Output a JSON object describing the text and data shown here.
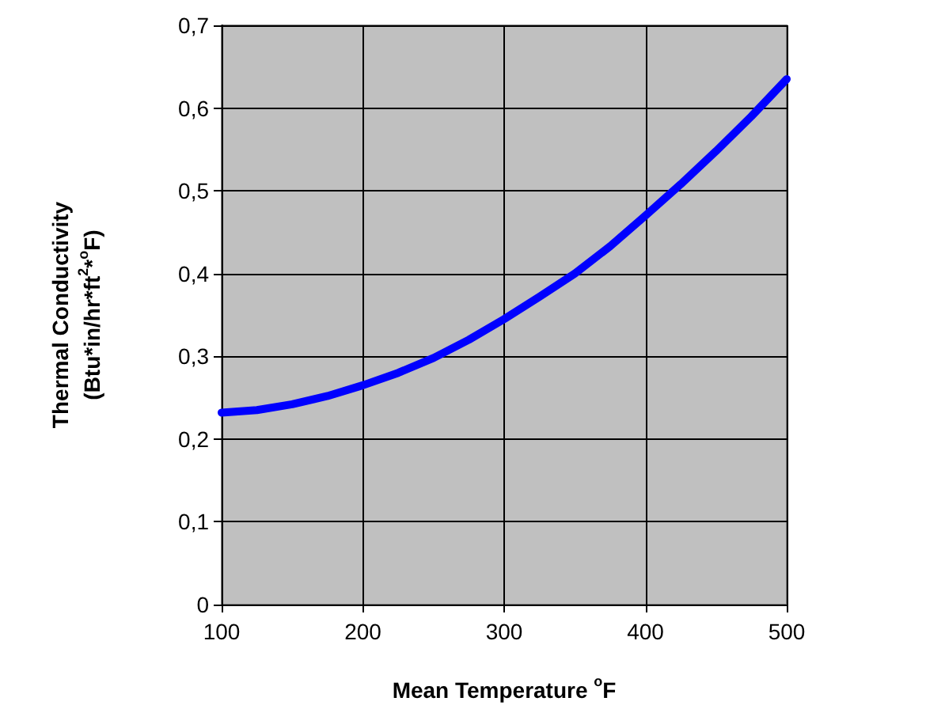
{
  "chart_data": {
    "type": "line",
    "xlabel": "Mean Temperature $^{o}$F",
    "ylabel": "Thermal Conductivity\n(Btu*in/hr*ft$^{2}$*$^{o}$F)",
    "x": [
      100,
      125,
      150,
      175,
      200,
      225,
      250,
      275,
      300,
      325,
      350,
      375,
      400,
      425,
      450,
      475,
      500
    ],
    "series": [
      {
        "color": "#0000ff",
        "values": [
          0.232,
          0.235,
          0.242,
          0.252,
          0.265,
          0.28,
          0.298,
          0.32,
          0.345,
          0.372,
          0.4,
          0.433,
          0.47,
          0.508,
          0.548,
          0.59,
          0.635
        ]
      }
    ],
    "xlim": [
      100,
      500
    ],
    "xticks": [
      100,
      200,
      300,
      400,
      500
    ],
    "ylim": [
      0,
      0.7
    ],
    "yticks": [
      {
        "value": 0,
        "label": "0"
      },
      {
        "value": 0.1,
        "label": "0,1"
      },
      {
        "value": 0.2,
        "label": "0,2"
      },
      {
        "value": 0.3,
        "label": "0,3"
      },
      {
        "value": 0.4,
        "label": "0,4"
      },
      {
        "value": 0.5,
        "label": "0,5"
      },
      {
        "value": 0.6,
        "label": "0,6"
      },
      {
        "value": 0.7,
        "label": "0,7"
      }
    ],
    "grid": true,
    "marker": "none",
    "line_style": "solid"
  }
}
